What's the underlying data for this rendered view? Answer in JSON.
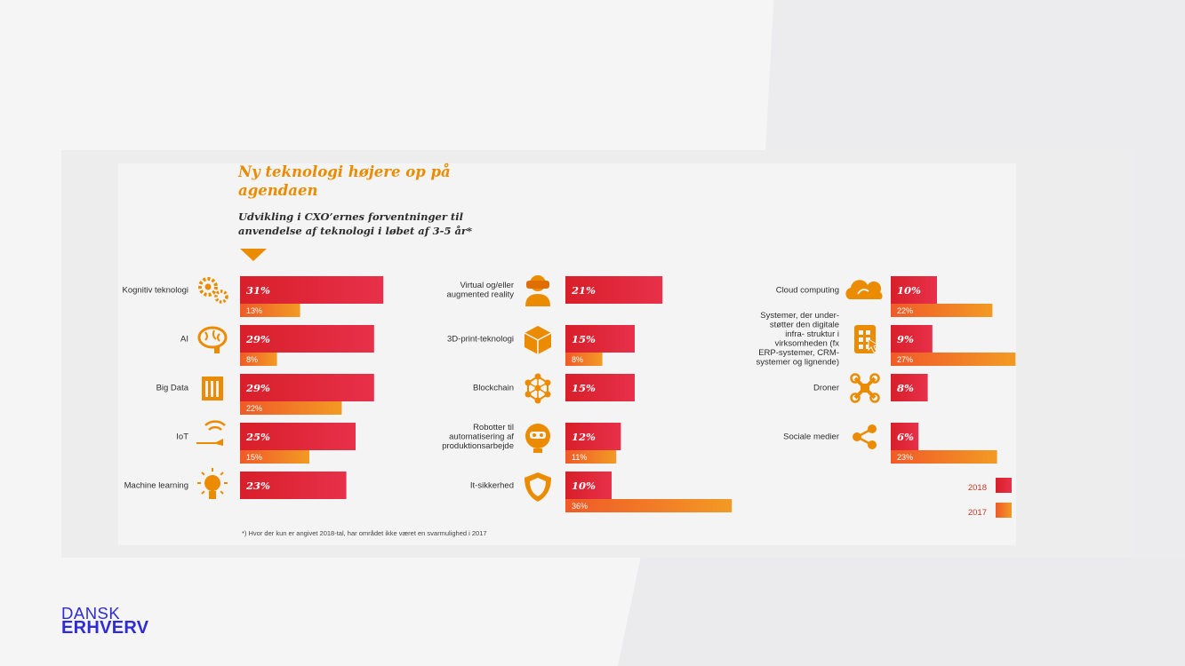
{
  "title": "Ny teknologi højere op på agendaen",
  "subtitle": "Udvikling i CXO’ernes forventninger til anvendelse af teknologi i løbet af 3-5 år*",
  "footnote": "*) Hvor der kun er angivet 2018-tal, har området ikke været en svarmulighed i 2017",
  "logo": {
    "line1": "DANSK",
    "line2": "ERHVERV"
  },
  "colors": {
    "bar_2018": "#d81f2a",
    "bar_2018_light": "#e8304a",
    "bar_2017": "#f05a28",
    "bar_2017_light": "#f29a24",
    "icon": "#eb8c00",
    "text": "#2d2d2d"
  },
  "chart_data": {
    "type": "bar",
    "orientation": "horizontal",
    "series_names": [
      "2018",
      "2017"
    ],
    "legend_position": "bottom-right",
    "columns": [
      [
        {
          "label": "Kognitiv teknologi",
          "icon": "gears-icon",
          "v2018": 31,
          "v2017": 13
        },
        {
          "label": "AI",
          "icon": "brain-icon",
          "v2018": 29,
          "v2017": 8
        },
        {
          "label": "Big Data",
          "icon": "database-icon",
          "v2018": 29,
          "v2017": 22
        },
        {
          "label": "IoT",
          "icon": "robot-hand-wifi-icon",
          "v2018": 25,
          "v2017": 15
        },
        {
          "label": "Machine learning",
          "icon": "lightbulb-icon",
          "v2018": 23,
          "v2017": null
        }
      ],
      [
        {
          "label": "Virtual og/eller augmented reality",
          "icon": "vr-headset-icon",
          "v2018": 21,
          "v2017": null
        },
        {
          "label": "3D-print-teknologi",
          "icon": "cube-icon",
          "v2018": 15,
          "v2017": 8
        },
        {
          "label": "Blockchain",
          "icon": "network-icon",
          "v2018": 15,
          "v2017": null
        },
        {
          "label": "Robotter til automatisering af produktionsarbejde",
          "icon": "robot-head-icon",
          "v2018": 12,
          "v2017": 11
        },
        {
          "label": "It-sikkerhed",
          "icon": "shield-icon",
          "v2018": 10,
          "v2017": 36
        }
      ],
      [
        {
          "label": "Cloud computing",
          "icon": "cloud-icon",
          "v2018": 10,
          "v2017": 22
        },
        {
          "label": "Systemer, der under- støtter den digitale infra- struktur i virksomheden (fx ERP-systemer, CRM- systemer og lignende)",
          "icon": "tablet-icon",
          "v2018": 9,
          "v2017": 27
        },
        {
          "label": "Droner",
          "icon": "drone-icon",
          "v2018": 8,
          "v2017": null
        },
        {
          "label": "Sociale medier",
          "icon": "share-icon",
          "v2018": 6,
          "v2017": 23
        }
      ]
    ]
  }
}
